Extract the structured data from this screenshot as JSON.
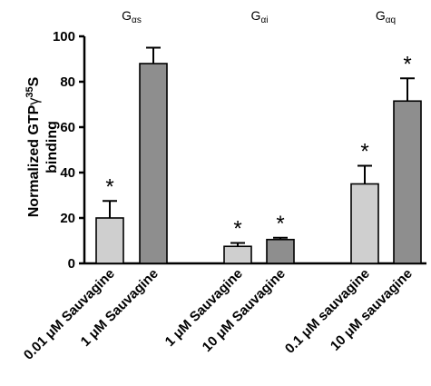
{
  "chart_data": {
    "type": "bar",
    "ylabel_line1": "Normalized GTP",
    "ylabel_gamma": "γ",
    "ylabel_sup": "35",
    "ylabel_line1_end": "S",
    "ylabel_line2": "binding",
    "ylim": [
      0,
      100
    ],
    "yticks": [
      "0",
      "20",
      "40",
      "60",
      "80",
      "100"
    ],
    "grid": false,
    "groups": [
      {
        "title_main": "G",
        "title_sub": "αs"
      },
      {
        "title_main": "G",
        "title_sub": "αi"
      },
      {
        "title_main": "G",
        "title_sub": "αq"
      }
    ],
    "bars": [
      {
        "category": "0.01 μM Sauvagine",
        "group": 0,
        "value": 20,
        "error": 7.5,
        "color": "#cfcfcf",
        "significance": "*"
      },
      {
        "category": "1 μM Sauvagine",
        "group": 0,
        "value": 88,
        "error": 7,
        "color": "#8e8e8e",
        "significance": ""
      },
      {
        "category": "1 μM Sauvagine",
        "group": 1,
        "value": 7.5,
        "error": 1.5,
        "color": "#cfcfcf",
        "significance": "*"
      },
      {
        "category": "10 μM Sauvagine",
        "group": 1,
        "value": 10.5,
        "error": 0.8,
        "color": "#8e8e8e",
        "significance": "*"
      },
      {
        "category": "0.1 μM sauvagine",
        "group": 2,
        "value": 35,
        "error": 8,
        "color": "#cfcfcf",
        "significance": "*"
      },
      {
        "category": "10 μM sauvagine",
        "group": 2,
        "value": 71.5,
        "error": 10,
        "color": "#8e8e8e",
        "significance": "*"
      }
    ]
  }
}
